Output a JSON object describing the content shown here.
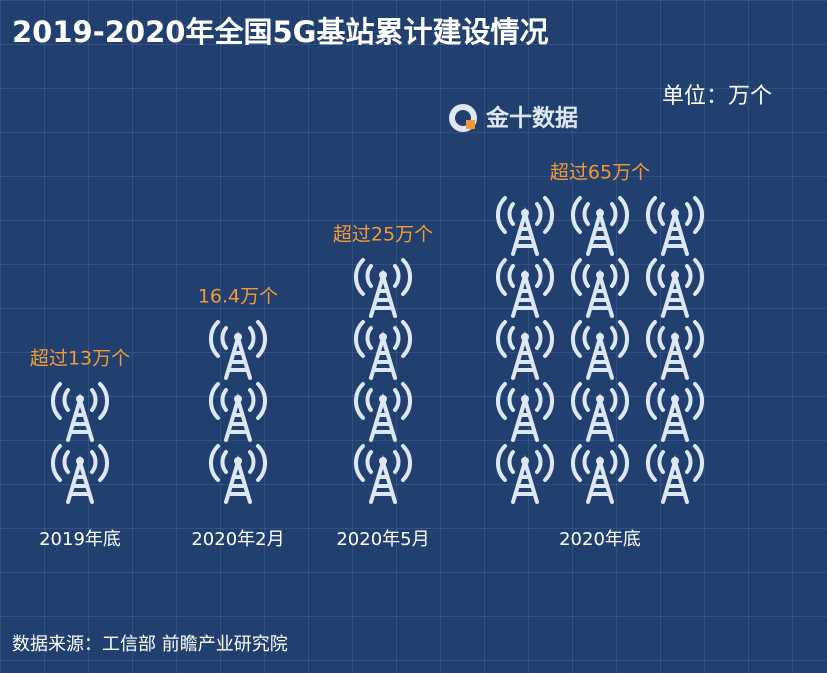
{
  "chart_data": {
    "type": "pictogram",
    "title": "2019-2020年全国5G基站累计建设情况",
    "unit": "单位：万个",
    "brand": "金十数据",
    "source": "数据来源：工信部 前瞻产业研究院",
    "categories": [
      "2019年底",
      "2020年2月",
      "2020年5月",
      "2020年底"
    ],
    "values": [
      13,
      16.4,
      25,
      65
    ],
    "value_labels": [
      "超过13万个",
      "16.4万个",
      "超过25万个",
      "超过65万个"
    ],
    "icon_counts": [
      2,
      3,
      4,
      15
    ],
    "label_color": "#f39a36"
  }
}
